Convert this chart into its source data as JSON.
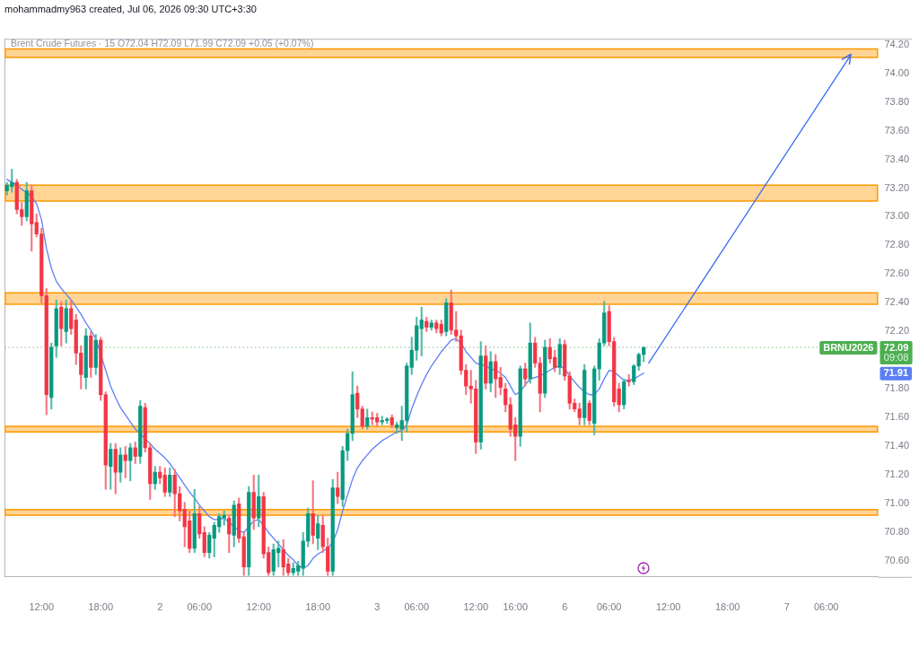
{
  "chart_data": {
    "type": "candlestick",
    "title": "mohammadmy963 created, Jul 06, 2026 09:30 UTC+3:30",
    "subtitle": "Brent Crude Futures · 15 O72.04 H72.09 L71.99 C72.09 +0.05 (+0.07%)",
    "categories": [
      null,
      null,
      null,
      null,
      null,
      null,
      null,
      "12:00",
      null,
      null,
      null,
      null,
      null,
      null,
      null,
      null,
      null,
      null,
      null,
      "18:00",
      null,
      null,
      null,
      null,
      null,
      null,
      null,
      null,
      null,
      null,
      null,
      "2",
      null,
      null,
      null,
      null,
      null,
      null,
      null,
      "06:00",
      null,
      null,
      null,
      null,
      null,
      null,
      null,
      null,
      null,
      null,
      null,
      "12:00",
      null,
      null,
      null,
      null,
      null,
      null,
      null,
      null,
      null,
      null,
      null,
      "18:00",
      null,
      null,
      null,
      null,
      null,
      null,
      null,
      null,
      null,
      null,
      null,
      "3",
      null,
      null,
      null,
      null,
      null,
      null,
      null,
      "06:00",
      null,
      null,
      null,
      null,
      null,
      null,
      null,
      null,
      null,
      null,
      null,
      "12:00",
      null,
      null,
      null,
      null,
      null,
      null,
      null,
      "16:00",
      null,
      null,
      null,
      null,
      null,
      null,
      null,
      null,
      null,
      "6",
      null,
      null,
      null,
      null,
      null,
      null,
      null,
      null,
      "06:00",
      null,
      null,
      null,
      null,
      null,
      null,
      null,
      null,
      null,
      null,
      null,
      "12:00",
      null,
      null,
      null,
      null,
      null,
      null,
      null,
      null,
      null,
      null,
      null,
      "18:00",
      null,
      null,
      null,
      null,
      null,
      null,
      null,
      null,
      null,
      null,
      null,
      "7",
      null,
      null,
      null,
      null,
      null,
      null,
      null,
      "06:00",
      null,
      null,
      null,
      null,
      null,
      null,
      null,
      null,
      null,
      null
    ],
    "ohlc": [
      [
        73.18,
        73.24,
        73.15,
        73.22
      ],
      [
        73.21,
        73.33,
        73.17,
        73.24
      ],
      [
        73.24,
        73.26,
        73.02,
        73.05
      ],
      [
        73.05,
        73.1,
        72.94,
        73.0
      ],
      [
        73.0,
        73.24,
        72.97,
        73.18
      ],
      [
        73.18,
        73.22,
        72.76,
        72.95
      ],
      [
        72.96,
        73.02,
        72.86,
        72.88
      ],
      [
        72.88,
        72.92,
        72.4,
        72.45
      ],
      [
        72.45,
        72.5,
        71.62,
        71.76
      ],
      [
        71.74,
        72.12,
        71.66,
        72.09
      ],
      [
        72.1,
        72.42,
        72.02,
        72.36
      ],
      [
        72.37,
        72.41,
        72.1,
        72.22
      ],
      [
        72.2,
        72.42,
        72.12,
        72.36
      ],
      [
        72.36,
        72.42,
        72.18,
        72.22
      ],
      [
        72.28,
        72.32,
        71.97,
        72.05
      ],
      [
        72.05,
        72.1,
        71.8,
        71.9
      ],
      [
        71.88,
        72.22,
        71.8,
        72.17
      ],
      [
        72.17,
        72.2,
        71.88,
        71.95
      ],
      [
        71.95,
        72.18,
        71.9,
        72.14
      ],
      [
        72.14,
        72.16,
        71.72,
        71.76
      ],
      [
        71.76,
        71.78,
        71.1,
        71.27
      ],
      [
        71.26,
        71.42,
        71.1,
        71.38
      ],
      [
        71.38,
        71.42,
        71.07,
        71.22
      ],
      [
        71.22,
        71.39,
        71.15,
        71.34
      ],
      [
        71.34,
        71.4,
        71.18,
        71.3
      ],
      [
        71.3,
        71.42,
        71.16,
        71.39
      ],
      [
        71.39,
        71.43,
        71.28,
        71.33
      ],
      [
        71.33,
        71.72,
        71.28,
        71.68
      ],
      [
        71.67,
        71.7,
        71.36,
        71.39
      ],
      [
        71.39,
        71.42,
        71.03,
        71.14
      ],
      [
        71.14,
        71.26,
        71.1,
        71.22
      ],
      [
        71.22,
        71.26,
        71.14,
        71.18
      ],
      [
        71.2,
        71.25,
        71.05,
        71.08
      ],
      [
        71.08,
        71.25,
        71.05,
        71.2
      ],
      [
        71.2,
        71.24,
        70.91,
        71.07
      ],
      [
        71.07,
        71.12,
        70.88,
        70.95
      ],
      [
        70.96,
        71.01,
        70.7,
        70.84
      ],
      [
        70.88,
        70.95,
        70.66,
        70.69
      ],
      [
        70.69,
        71.1,
        70.66,
        70.93
      ],
      [
        70.93,
        70.98,
        70.76,
        70.79
      ],
      [
        70.8,
        70.84,
        70.63,
        70.66
      ],
      [
        70.66,
        70.8,
        70.62,
        70.78
      ],
      [
        70.76,
        70.87,
        70.63,
        70.85
      ],
      [
        70.84,
        70.93,
        70.8,
        70.91
      ],
      [
        70.9,
        70.95,
        70.85,
        70.92
      ],
      [
        70.9,
        70.92,
        70.66,
        70.79
      ],
      [
        70.78,
        71.02,
        70.7,
        70.99
      ],
      [
        71.0,
        71.04,
        70.73,
        70.76
      ],
      [
        70.77,
        70.8,
        70.5,
        70.56
      ],
      [
        70.56,
        71.12,
        70.5,
        71.08
      ],
      [
        71.08,
        71.2,
        70.82,
        70.9
      ],
      [
        70.9,
        71.2,
        70.84,
        71.05
      ],
      [
        71.05,
        71.08,
        70.62,
        70.65
      ],
      [
        70.66,
        70.7,
        70.5,
        70.52
      ],
      [
        70.53,
        70.72,
        70.5,
        70.68
      ],
      [
        70.66,
        70.74,
        70.56,
        70.69
      ],
      [
        70.68,
        70.75,
        70.5,
        70.56
      ],
      [
        70.58,
        70.62,
        70.5,
        70.52
      ],
      [
        70.52,
        70.59,
        70.5,
        70.55
      ],
      [
        70.53,
        70.6,
        70.5,
        70.57
      ],
      [
        70.55,
        70.8,
        70.5,
        70.74
      ],
      [
        70.74,
        70.97,
        70.7,
        70.93
      ],
      [
        70.93,
        71.16,
        70.72,
        70.78
      ],
      [
        70.76,
        70.92,
        70.68,
        70.86
      ],
      [
        70.85,
        70.92,
        70.66,
        70.7
      ],
      [
        70.7,
        70.76,
        70.5,
        70.53
      ],
      [
        70.53,
        71.17,
        70.5,
        71.11
      ],
      [
        71.11,
        71.22,
        71.0,
        71.05
      ],
      [
        71.03,
        71.4,
        70.98,
        71.37
      ],
      [
        71.37,
        71.52,
        71.3,
        71.49
      ],
      [
        71.49,
        71.92,
        71.44,
        71.76
      ],
      [
        71.77,
        71.82,
        71.6,
        71.66
      ],
      [
        71.66,
        71.68,
        71.52,
        71.54
      ],
      [
        71.54,
        71.66,
        71.52,
        71.6
      ],
      [
        71.6,
        71.64,
        71.55,
        71.59
      ],
      [
        71.6,
        71.63,
        71.54,
        71.57
      ],
      [
        71.57,
        71.61,
        71.55,
        71.58
      ],
      [
        71.58,
        71.6,
        71.56,
        71.59
      ],
      [
        71.6,
        71.62,
        71.53,
        71.55
      ],
      [
        71.53,
        71.57,
        71.49,
        71.55
      ],
      [
        71.52,
        71.68,
        71.44,
        71.58
      ],
      [
        71.58,
        71.98,
        71.5,
        71.96
      ],
      [
        71.95,
        72.16,
        71.9,
        72.07
      ],
      [
        72.07,
        72.3,
        72.0,
        72.24
      ],
      [
        72.22,
        72.37,
        72.03,
        72.28
      ],
      [
        72.27,
        72.3,
        72.2,
        72.23
      ],
      [
        72.23,
        72.28,
        72.21,
        72.26
      ],
      [
        72.26,
        72.28,
        72.19,
        72.22
      ],
      [
        72.25,
        72.28,
        72.17,
        72.19
      ],
      [
        72.2,
        72.43,
        72.17,
        72.4
      ],
      [
        72.4,
        72.49,
        72.18,
        72.21
      ],
      [
        72.21,
        72.34,
        72.13,
        72.17
      ],
      [
        72.17,
        72.21,
        71.9,
        71.93
      ],
      [
        71.93,
        71.97,
        71.76,
        71.82
      ],
      [
        71.82,
        71.93,
        71.7,
        71.8
      ],
      [
        71.8,
        71.86,
        71.35,
        71.43
      ],
      [
        71.43,
        72.13,
        71.38,
        72.03
      ],
      [
        72.03,
        72.1,
        71.8,
        71.84
      ],
      [
        71.84,
        72.06,
        71.78,
        71.99
      ],
      [
        71.99,
        72.04,
        71.74,
        71.87
      ],
      [
        71.88,
        71.95,
        71.76,
        71.81
      ],
      [
        71.8,
        71.84,
        71.64,
        71.69
      ],
      [
        71.69,
        71.74,
        71.47,
        71.52
      ],
      [
        71.55,
        71.6,
        71.3,
        71.47
      ],
      [
        71.47,
        71.96,
        71.4,
        71.94
      ],
      [
        71.94,
        71.98,
        71.82,
        71.87
      ],
      [
        71.87,
        72.26,
        71.84,
        72.12
      ],
      [
        72.12,
        72.16,
        71.95,
        71.98
      ],
      [
        71.98,
        72.02,
        71.64,
        71.77
      ],
      [
        71.77,
        72.14,
        71.74,
        72.09
      ],
      [
        72.09,
        72.15,
        71.98,
        72.01
      ],
      [
        72.02,
        72.07,
        71.92,
        71.95
      ],
      [
        71.95,
        72.15,
        71.9,
        72.11
      ],
      [
        72.11,
        72.14,
        71.86,
        71.89
      ],
      [
        71.89,
        71.92,
        71.66,
        71.7
      ],
      [
        71.7,
        71.73,
        71.64,
        71.66
      ],
      [
        71.66,
        71.7,
        71.55,
        71.6
      ],
      [
        71.6,
        71.97,
        71.55,
        71.93
      ],
      [
        71.7,
        71.72,
        71.55,
        71.58
      ],
      [
        71.56,
        71.96,
        71.48,
        71.94
      ],
      [
        71.94,
        72.15,
        71.86,
        72.12
      ],
      [
        72.12,
        72.41,
        72.1,
        72.33
      ],
      [
        72.34,
        72.38,
        72.1,
        72.13
      ],
      [
        72.13,
        72.16,
        71.68,
        71.71
      ],
      [
        71.8,
        71.84,
        71.64,
        71.69
      ],
      [
        71.69,
        71.87,
        71.66,
        71.85
      ],
      [
        71.86,
        71.9,
        71.82,
        71.85
      ],
      [
        71.85,
        71.97,
        71.83,
        71.96
      ],
      [
        71.96,
        72.05,
        71.93,
        72.04
      ],
      [
        72.04,
        72.09,
        71.99,
        72.09
      ],
      null,
      null,
      null,
      null,
      null,
      null,
      null,
      null,
      null,
      null,
      null,
      null,
      null,
      null,
      null,
      null,
      null,
      null,
      null,
      null,
      null,
      null,
      null,
      null,
      null,
      null,
      null,
      null,
      null,
      null,
      null,
      null,
      null,
      null,
      null,
      null,
      null,
      null,
      null,
      null,
      null,
      null,
      null,
      null,
      null,
      null,
      null
    ],
    "colors": [
      "#089981",
      "#089981",
      "#f23645",
      "#f23645",
      "#089981",
      "#f23645",
      "#f23645",
      "#f23645",
      "#f23645",
      "#089981",
      "#089981",
      "#f23645",
      "#089981",
      "#f23645",
      "#f23645",
      "#f23645",
      "#089981",
      "#f23645",
      "#089981",
      "#f23645",
      "#f23645",
      "#089981",
      "#f23645",
      "#089981",
      "#f23645",
      "#089981",
      "#f23645",
      "#089981",
      "#f23645",
      "#f23645",
      "#089981",
      "#f23645",
      "#f23645",
      "#089981",
      "#f23645",
      "#f23645",
      "#f23645",
      "#f23645",
      "#089981",
      "#f23645",
      "#f23645",
      "#089981",
      "#089981",
      "#089981",
      "#089981",
      "#f23645",
      "#089981",
      "#f23645",
      "#f23645",
      "#089981",
      "#f23645",
      "#089981",
      "#f23645",
      "#f23645",
      "#089981",
      "#089981",
      "#f23645",
      "#f23645",
      "#089981",
      "#089981",
      "#089981",
      "#089981",
      "#f23645",
      "#089981",
      "#f23645",
      "#f23645",
      "#089981",
      "#f23645",
      "#089981",
      "#089981",
      "#089981",
      "#f23645",
      "#f23645",
      "#089981",
      "#f23645",
      "#f23645",
      "#089981",
      "#089981",
      "#f23645",
      "#089981",
      "#089981",
      "#089981",
      "#089981",
      "#089981",
      "#089981",
      "#f23645",
      "#089981",
      "#f23645",
      "#f23645",
      "#089981",
      "#f23645",
      "#f23645",
      "#f23645",
      "#f23645",
      "#f23645",
      "#f23645",
      "#089981",
      "#f23645",
      "#089981",
      "#f23645",
      "#f23645",
      "#f23645",
      "#f23645",
      "#f23645",
      "#089981",
      "#f23645",
      "#089981",
      "#f23645",
      "#f23645",
      "#089981",
      "#f23645",
      "#f23645",
      "#089981",
      "#f23645",
      "#f23645",
      "#f23645",
      "#f23645",
      "#089981",
      "#f23645",
      "#089981",
      "#089981",
      "#089981",
      "#f23645",
      "#f23645",
      "#f23645",
      "#089981",
      "#f23645",
      "#089981",
      "#089981",
      "#089981",
      null,
      null,
      null,
      null,
      null,
      null,
      null,
      null,
      null,
      null,
      null,
      null,
      null,
      null,
      null,
      null,
      null,
      null,
      null,
      null,
      null,
      null,
      null,
      null,
      null,
      null,
      null,
      null,
      null,
      null,
      null,
      null,
      null,
      null,
      null,
      null,
      null,
      null,
      null,
      null,
      null,
      null,
      null,
      null,
      null,
      null,
      null
    ],
    "series": [
      {
        "type": "line",
        "color": "#5b7ff3",
        "values": [
          73.26,
          73.24,
          73.22,
          73.19,
          73.17,
          73.14,
          73.09,
          72.98,
          72.78,
          72.64,
          72.55,
          72.5,
          72.46,
          72.42,
          72.37,
          72.32,
          72.26,
          72.21,
          72.15,
          null,
          71.93,
          71.82,
          71.74,
          71.67,
          71.62,
          71.57,
          71.52,
          71.49,
          71.45,
          71.42,
          71.38,
          71.35,
          71.32,
          71.28,
          71.23,
          71.18,
          71.13,
          71.08,
          71.04,
          70.99,
          70.95,
          70.91,
          70.89,
          70.89,
          70.9,
          70.87,
          70.84,
          70.81,
          70.8,
          70.84,
          70.88,
          70.89,
          70.85,
          70.8,
          70.76,
          70.72,
          70.68,
          70.64,
          70.61,
          70.57,
          70.55,
          70.57,
          70.62,
          70.65,
          70.67,
          70.69,
          70.73,
          70.82,
          70.95,
          71.06,
          71.17,
          71.25,
          71.3,
          71.34,
          71.38,
          71.41,
          71.44,
          71.46,
          71.48,
          71.5,
          71.51,
          71.55,
          71.66,
          71.75,
          71.83,
          71.9,
          71.96,
          72.01,
          72.06,
          72.1,
          72.14,
          72.15,
          72.12,
          72.06,
          72.02,
          71.98,
          71.97,
          71.96,
          71.94,
          71.93,
          71.91,
          71.88,
          71.82,
          71.76,
          71.78,
          71.83,
          71.87,
          71.88,
          71.89,
          71.91,
          71.93,
          71.95,
          71.96,
          71.94,
          71.89,
          71.85,
          71.81,
          71.78,
          71.76,
          71.76,
          71.8,
          71.87,
          71.93,
          71.92,
          71.89,
          71.86,
          71.86,
          71.87,
          71.89,
          71.91,
          null,
          null,
          null,
          null,
          null,
          null,
          null,
          null,
          null,
          null,
          null,
          null,
          null,
          null,
          null,
          null,
          null,
          null,
          null,
          null,
          null,
          null,
          null,
          null,
          null,
          null,
          null,
          null,
          null,
          null,
          null,
          null,
          null,
          null,
          null,
          null,
          null,
          null,
          null,
          null,
          null,
          null,
          null,
          null,
          null,
          null,
          null
        ]
      },
      {
        "type": "line",
        "color": "#3d6cf0",
        "values": [
          null,
          null,
          null,
          null,
          null,
          null,
          null,
          null,
          null,
          null,
          null,
          null,
          null,
          null,
          null,
          null,
          null,
          null,
          null,
          null,
          null,
          null,
          null,
          null,
          null,
          null,
          null,
          null,
          null,
          null,
          null,
          null,
          null,
          null,
          null,
          null,
          null,
          null,
          null,
          null,
          null,
          null,
          null,
          null,
          null,
          null,
          null,
          null,
          null,
          null,
          null,
          null,
          null,
          null,
          null,
          null,
          null,
          null,
          null,
          null,
          null,
          null,
          null,
          null,
          null,
          null,
          null,
          null,
          null,
          null,
          null,
          null,
          null,
          null,
          null,
          null,
          null,
          null,
          null,
          null,
          null,
          null,
          null,
          null,
          null,
          null,
          null,
          null,
          null,
          null,
          null,
          null,
          null,
          null,
          null,
          null,
          null,
          null,
          null,
          null,
          null,
          null,
          null,
          null,
          null,
          null,
          null,
          null,
          null,
          null,
          null,
          null,
          null,
          null,
          null,
          null,
          null,
          null,
          null,
          null,
          null,
          null,
          null,
          null,
          null,
          null,
          null,
          null,
          null,
          null,
          71.98,
          null,
          null,
          null,
          null,
          null,
          null,
          null,
          null,
          null,
          null,
          null,
          null,
          null,
          null,
          null,
          null,
          null,
          null,
          null,
          null,
          null,
          null,
          null,
          null,
          null,
          null,
          null,
          null,
          null,
          null,
          null,
          null,
          null,
          null,
          null,
          null,
          null,
          null,
          null,
          null,
          74.13,
          null,
          null,
          null,
          null,
          null
        ]
      }
    ],
    "ylim": [
      70.49,
      74.24
    ],
    "yticks": [
      {
        "value": 70.6,
        "label": "70.60"
      },
      {
        "value": 70.8,
        "label": "70.80"
      },
      {
        "value": 71,
        "label": "71.00"
      },
      {
        "value": 71.2,
        "label": "71.20"
      },
      {
        "value": 71.4,
        "label": "71.40"
      },
      {
        "value": 71.6,
        "label": "71.60"
      },
      {
        "value": 71.8,
        "label": "71.80"
      },
      {
        "value": 72.2,
        "label": "72.20"
      },
      {
        "value": 72.4,
        "label": "72.40"
      },
      {
        "value": 72.6,
        "label": "72.60"
      },
      {
        "value": 72.8,
        "label": "72.80"
      },
      {
        "value": 73,
        "label": "73.00"
      },
      {
        "value": 73.2,
        "label": "73.20"
      },
      {
        "value": 73.4,
        "label": "73.40"
      },
      {
        "value": 73.6,
        "label": "73.60"
      },
      {
        "value": 73.8,
        "label": "73.80"
      },
      {
        "value": 74,
        "label": "74.00"
      },
      {
        "value": 74.2,
        "label": "74.20"
      }
    ],
    "bands": [
      {
        "axis": "y",
        "from": 74.11,
        "to": 74.17,
        "color": "#ff9800"
      },
      {
        "axis": "y",
        "from": 73.11,
        "to": 73.22,
        "color": "#ff9800"
      },
      {
        "axis": "y",
        "from": 72.39,
        "to": 72.47,
        "color": "#ff9800"
      },
      {
        "axis": "y",
        "from": 71.5,
        "to": 71.54,
        "color": "#ff9800"
      },
      {
        "axis": "y",
        "from": 70.92,
        "to": 70.96,
        "color": "#ff9800"
      }
    ],
    "ref_lines": [
      {
        "axis": "y",
        "value": 72.09,
        "label": "BRNU2026",
        "color": "#4caf50",
        "line_style": "dotted"
      }
    ],
    "annotations": [
      "72.09",
      "09:08",
      {
        "text": "71.91",
        "y": 71.91
      }
    ]
  }
}
